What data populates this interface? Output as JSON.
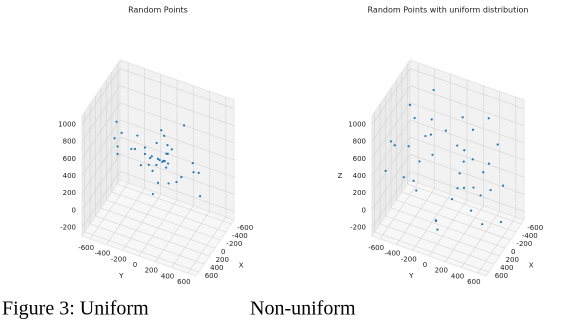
{
  "chart_data": [
    {
      "type": "scatter3d",
      "title": "Random Points",
      "xlabel": "X",
      "ylabel": "Y",
      "color": "#1f77b4",
      "xlim": [
        -700,
        700
      ],
      "ylim": [
        -700,
        700
      ],
      "zlim": [
        -300,
        1100
      ],
      "xticks": [
        -600,
        -400,
        -200,
        0,
        200,
        400,
        600
      ],
      "yticks": [
        -600,
        -400,
        -200,
        0,
        200,
        400,
        600
      ],
      "zticks": [
        -200,
        0,
        200,
        400,
        600,
        800,
        1000
      ],
      "x": [
        0,
        50,
        -80,
        120,
        -30,
        200,
        -150,
        30,
        -60,
        90,
        -220,
        150,
        10,
        -100,
        60,
        300,
        -300,
        -20,
        80,
        -140,
        400,
        -450,
        250,
        -250,
        40,
        -10,
        130,
        -180,
        20,
        500,
        -500,
        350,
        -380,
        70,
        -70,
        100,
        -120,
        5,
        -40,
        160
      ],
      "y": [
        20,
        -60,
        40,
        -120,
        90,
        -30,
        70,
        -200,
        150,
        10,
        -90,
        180,
        -250,
        50,
        -140,
        100,
        -60,
        220,
        -300,
        30,
        -400,
        350,
        200,
        -150,
        450,
        -500,
        -20,
        260,
        60,
        -280,
        120,
        -380,
        300,
        -90,
        80,
        550,
        -550,
        0,
        110,
        -230
      ],
      "z": [
        500,
        540,
        460,
        580,
        420,
        600,
        520,
        380,
        640,
        480,
        560,
        350,
        700,
        450,
        620,
        400,
        680,
        300,
        560,
        720,
        800,
        250,
        850,
        200,
        520,
        480,
        150,
        900,
        500,
        950,
        100,
        600,
        380,
        440,
        560,
        300,
        700,
        510,
        470,
        620
      ]
    },
    {
      "type": "scatter3d",
      "title": "Random Points with uniform distribution",
      "xlabel": "X",
      "ylabel": "Y",
      "zlabel": "Z",
      "color": "#1f77b4",
      "xlim": [
        -700,
        700
      ],
      "ylim": [
        -700,
        700
      ],
      "zlim": [
        -300,
        1100
      ],
      "xticks": [
        -600,
        -400,
        -200,
        0,
        200,
        400,
        600
      ],
      "yticks": [
        -600,
        -400,
        -200,
        0,
        200,
        400,
        600
      ],
      "zticks": [
        -200,
        0,
        200,
        400,
        600,
        800,
        1000
      ],
      "x": [
        -600,
        -450,
        -300,
        -150,
        0,
        150,
        300,
        450,
        600,
        -520,
        -380,
        -220,
        -60,
        100,
        260,
        420,
        560,
        -580,
        -400,
        -250,
        -90,
        70,
        230,
        380,
        540,
        -480,
        -330,
        -170,
        -20,
        140,
        290,
        460,
        610,
        -610,
        -350,
        -120,
        180,
        350,
        500,
        20
      ],
      "y": [
        300,
        -500,
        100,
        600,
        -200,
        450,
        -600,
        0,
        250,
        -350,
        550,
        -100,
        400,
        -450,
        200,
        -250,
        500,
        -50,
        -600,
        350,
        150,
        -400,
        600,
        -150,
        50,
        450,
        -300,
        250,
        -550,
        550,
        -50,
        350,
        -450,
        100,
        0,
        -250,
        -350,
        400,
        -600,
        200
      ],
      "z": [
        800,
        100,
        500,
        -100,
        900,
        300,
        650,
        0,
        400,
        950,
        200,
        700,
        -150,
        550,
        850,
        250,
        600,
        50,
        750,
        350,
        1000,
        150,
        450,
        900,
        -50,
        600,
        300,
        850,
        100,
        700,
        -100,
        500,
        800,
        250,
        0,
        650,
        950,
        200,
        400,
        550
      ]
    }
  ],
  "caption": [
    "Figure 3: Uniform",
    "Non-uniform"
  ]
}
